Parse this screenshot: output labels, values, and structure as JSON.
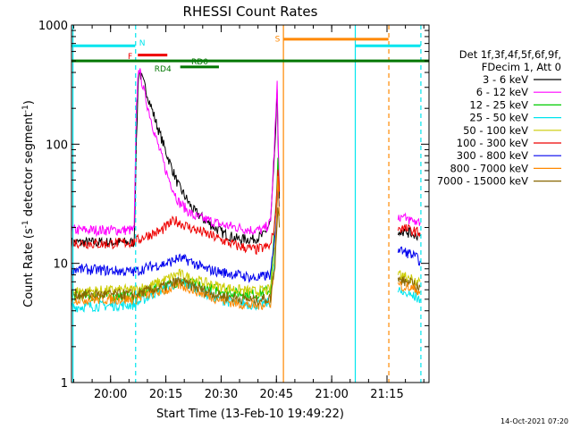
{
  "chart_data": {
    "type": "line",
    "title": "RHESSI Count Rates",
    "xlabel": "Start Time (13-Feb-10 19:49:22)",
    "ylabel_main": "Count Rate (s",
    "ylabel_sup1": "-1",
    "ylabel_mid": " detector segment",
    "ylabel_sup2": "-1",
    "ylabel_end": ")",
    "y_scale": "log",
    "ylim": [
      1,
      1000
    ],
    "xlim_minutes": [
      0,
      97
    ],
    "x_ticks": [
      {
        "label": "20:00",
        "minute": 10.6
      },
      {
        "label": "20:15",
        "minute": 25.6
      },
      {
        "label": "20:30",
        "minute": 40.6
      },
      {
        "label": "20:45",
        "minute": 55.6
      },
      {
        "label": "21:00",
        "minute": 70.6
      },
      {
        "label": "21:15",
        "minute": 85.6
      }
    ],
    "y_ticks": [
      {
        "label": "1",
        "value": 1
      },
      {
        "label": "10",
        "value": 10
      },
      {
        "label": "100",
        "value": 100
      },
      {
        "label": "1000",
        "value": 1000
      }
    ],
    "legend": {
      "header1": "Det 1f,3f,4f,5f,6f,9f,",
      "header2": "FDecim 1, Att 0",
      "placement": "right",
      "entries": [
        {
          "label": "3 - 6 keV",
          "color": "#000000"
        },
        {
          "label": "6 - 12 keV",
          "color": "#ff00ff"
        },
        {
          "label": "12 - 25 keV",
          "color": "#00cc00"
        },
        {
          "label": "25 - 50 keV",
          "color": "#00e5ee"
        },
        {
          "label": "50 - 100 keV",
          "color": "#cccc00"
        },
        {
          "label": "100 - 300 keV",
          "color": "#ee0000"
        },
        {
          "label": "300 - 800 keV",
          "color": "#0000ee"
        },
        {
          "label": "800 - 7000 keV",
          "color": "#ff8800"
        },
        {
          "label": "7000 - 15000 keV",
          "color": "#886600"
        }
      ]
    },
    "series": [
      {
        "name": "3 - 6 keV",
        "color": "#000000",
        "points": [
          [
            0,
            15
          ],
          [
            17,
            15
          ],
          [
            17.6,
            100
          ],
          [
            18.2,
            420
          ],
          [
            20,
            300
          ],
          [
            23,
            150
          ],
          [
            26,
            80
          ],
          [
            29,
            45
          ],
          [
            33,
            28
          ],
          [
            37,
            22
          ],
          [
            41,
            18
          ],
          [
            45,
            16
          ],
          [
            49,
            16
          ],
          [
            52,
            17
          ],
          [
            54,
            22
          ],
          [
            55,
            70
          ],
          [
            55.8,
            260
          ],
          [
            56.4,
            35
          ]
        ]
      },
      {
        "name": "6 - 12 keV",
        "color": "#ff00ff",
        "points": [
          [
            0,
            19
          ],
          [
            17,
            19
          ],
          [
            17.6,
            200
          ],
          [
            18.2,
            450
          ],
          [
            20,
            250
          ],
          [
            23,
            110
          ],
          [
            26,
            55
          ],
          [
            29,
            33
          ],
          [
            33,
            25
          ],
          [
            37,
            23
          ],
          [
            41,
            21
          ],
          [
            45,
            20
          ],
          [
            49,
            19
          ],
          [
            52,
            19
          ],
          [
            54,
            22
          ],
          [
            55,
            90
          ],
          [
            55.8,
            310
          ],
          [
            56.4,
            40
          ]
        ]
      },
      {
        "name": "12 - 25 keV",
        "color": "#00cc00",
        "points": [
          [
            0,
            5.3
          ],
          [
            17,
            5.3
          ],
          [
            22,
            6.0
          ],
          [
            26,
            6.5
          ],
          [
            29,
            7.0
          ],
          [
            32,
            6.9
          ],
          [
            36,
            6.3
          ],
          [
            40,
            6.0
          ],
          [
            45,
            5.6
          ],
          [
            50,
            5.5
          ],
          [
            54,
            6.0
          ],
          [
            55.2,
            22
          ],
          [
            56,
            70
          ],
          [
            56.4,
            40
          ]
        ]
      },
      {
        "name": "25 - 50 keV",
        "color": "#00e5ee",
        "points": [
          [
            0,
            4.3
          ],
          [
            17,
            4.5
          ],
          [
            22,
            5.5
          ],
          [
            26,
            6.3
          ],
          [
            29,
            7.0
          ],
          [
            32,
            6.6
          ],
          [
            36,
            5.6
          ],
          [
            40,
            5.0
          ],
          [
            45,
            4.6
          ],
          [
            50,
            4.5
          ],
          [
            54,
            4.7
          ],
          [
            55.2,
            12
          ],
          [
            56,
            40
          ],
          [
            56.4,
            30
          ]
        ]
      },
      {
        "name": "50 - 100 keV",
        "color": "#cccc00",
        "points": [
          [
            0,
            5.8
          ],
          [
            17,
            6.0
          ],
          [
            22,
            6.6
          ],
          [
            26,
            7.4
          ],
          [
            29,
            8.2
          ],
          [
            32,
            7.6
          ],
          [
            36,
            6.9
          ],
          [
            40,
            6.4
          ],
          [
            45,
            6.0
          ],
          [
            50,
            5.8
          ],
          [
            54,
            6.0
          ],
          [
            55.2,
            14
          ],
          [
            56,
            45
          ],
          [
            56.4,
            30
          ]
        ]
      },
      {
        "name": "100 - 300 keV",
        "color": "#ee0000",
        "points": [
          [
            0,
            15
          ],
          [
            8,
            14.5
          ],
          [
            17,
            15
          ],
          [
            20,
            17
          ],
          [
            24,
            18.5
          ],
          [
            28,
            23
          ],
          [
            32,
            20
          ],
          [
            36,
            18
          ],
          [
            40,
            16
          ],
          [
            45,
            14
          ],
          [
            50,
            13
          ],
          [
            54,
            14
          ],
          [
            55.2,
            22
          ],
          [
            56,
            60
          ],
          [
            56.4,
            40
          ]
        ]
      },
      {
        "name": "300 - 800 keV",
        "color": "#0000ee",
        "points": [
          [
            0,
            9
          ],
          [
            17,
            8.5
          ],
          [
            22,
            9.5
          ],
          [
            26,
            10
          ],
          [
            29,
            11
          ],
          [
            32,
            10.5
          ],
          [
            36,
            9
          ],
          [
            40,
            8.5
          ],
          [
            45,
            8
          ],
          [
            50,
            7.5
          ],
          [
            54,
            8
          ],
          [
            55.2,
            16
          ],
          [
            56,
            45
          ],
          [
            56.4,
            30
          ]
        ]
      },
      {
        "name": "800 - 7000 keV",
        "color": "#ff8800",
        "points": [
          [
            0,
            5
          ],
          [
            17,
            5
          ],
          [
            22,
            5.6
          ],
          [
            26,
            6
          ],
          [
            29,
            6.6
          ],
          [
            32,
            6.2
          ],
          [
            36,
            5.5
          ],
          [
            40,
            5
          ],
          [
            45,
            4.6
          ],
          [
            50,
            4.4
          ],
          [
            54,
            4.7
          ],
          [
            55.2,
            10
          ],
          [
            56,
            50
          ],
          [
            56.4,
            25
          ]
        ]
      },
      {
        "name": "7000 - 15000 keV",
        "color": "#886600",
        "points": [
          [
            0,
            5.5
          ],
          [
            17,
            5.5
          ],
          [
            22,
            6.0
          ],
          [
            26,
            6.5
          ],
          [
            29,
            7.1
          ],
          [
            32,
            6.6
          ],
          [
            36,
            5.9
          ],
          [
            40,
            5.4
          ],
          [
            45,
            5.1
          ],
          [
            50,
            4.9
          ],
          [
            54,
            5.1
          ],
          [
            55.2,
            10
          ],
          [
            56,
            30
          ],
          [
            56.4,
            20
          ]
        ]
      },
      {
        "name": "3 - 6 keV (late)",
        "color": "#000000",
        "points": [
          [
            88.6,
            19
          ],
          [
            92,
            18
          ],
          [
            94.6,
            17
          ]
        ]
      },
      {
        "name": "6 - 12 keV (late)",
        "color": "#ff00ff",
        "points": [
          [
            88.6,
            25
          ],
          [
            92,
            23
          ],
          [
            94.6,
            22
          ]
        ]
      },
      {
        "name": "100 - 300 keV (late)",
        "color": "#ee0000",
        "points": [
          [
            88.6,
            20
          ],
          [
            92,
            19
          ],
          [
            94.6,
            18
          ]
        ]
      },
      {
        "name": "300 - 800 keV (late)",
        "color": "#0000ee",
        "points": [
          [
            88.6,
            13
          ],
          [
            92,
            12
          ],
          [
            94.6,
            10.5
          ]
        ]
      },
      {
        "name": "50 - 100 keV (late)",
        "color": "#cccc00",
        "points": [
          [
            88.6,
            8
          ],
          [
            92,
            7.5
          ],
          [
            94.6,
            7
          ]
        ]
      },
      {
        "name": "7000 - 15000 keV (late)",
        "color": "#886600",
        "points": [
          [
            88.6,
            7.3
          ],
          [
            92,
            6.8
          ],
          [
            94.6,
            6.3
          ]
        ]
      },
      {
        "name": "800 - 7000 keV (late)",
        "color": "#ff8800",
        "points": [
          [
            88.6,
            6.6
          ],
          [
            92,
            6.2
          ],
          [
            94.6,
            5.8
          ]
        ]
      },
      {
        "name": "25 - 50 keV (late)",
        "color": "#00e5ee",
        "points": [
          [
            88.6,
            5.8
          ],
          [
            92,
            5.4
          ],
          [
            94.6,
            5.0
          ]
        ]
      }
    ],
    "vlines": [
      {
        "minute": 0.4,
        "color": "#00e5ee",
        "style": "solid"
      },
      {
        "minute": 17.4,
        "color": "#00e5ee",
        "style": "dashed"
      },
      {
        "minute": 57.5,
        "color": "#ff8800",
        "style": "solid"
      },
      {
        "minute": 77.0,
        "color": "#00e5ee",
        "style": "solid"
      },
      {
        "minute": 86.1,
        "color": "#ff8800",
        "style": "dashed"
      },
      {
        "minute": 94.8,
        "color": "#00e5ee",
        "style": "dashed"
      }
    ],
    "flag_bars": [
      {
        "start": 0,
        "end": 17.3,
        "value": 670,
        "color": "#00e5ee"
      },
      {
        "start": 77.1,
        "end": 94.7,
        "value": 670,
        "color": "#00e5ee"
      },
      {
        "start": 57.6,
        "end": 86.0,
        "value": 760,
        "color": "#ff8800"
      },
      {
        "start": 18.0,
        "end": 26.0,
        "value": 560,
        "color": "#ee0000"
      },
      {
        "start": 0,
        "end": 97,
        "value": 500,
        "color": "#007700"
      },
      {
        "start": 29.5,
        "end": 40.0,
        "value": 445,
        "color": "#007700"
      }
    ],
    "flag_labels": [
      {
        "text": "N",
        "minute": 19.2,
        "value": 720,
        "color": "#00e5ee"
      },
      {
        "text": "S",
        "minute": 55.9,
        "value": 780,
        "color": "#ff8800"
      },
      {
        "text": "F",
        "minute": 15.9,
        "value": 555,
        "color": "#ee0000"
      },
      {
        "text": "RD0",
        "minute": 34.8,
        "value": 500,
        "color": "#007700"
      },
      {
        "text": "RD4",
        "minute": 24.8,
        "value": 435,
        "color": "#007700"
      }
    ],
    "footer_date": "14-Oct-2021 07:20"
  }
}
